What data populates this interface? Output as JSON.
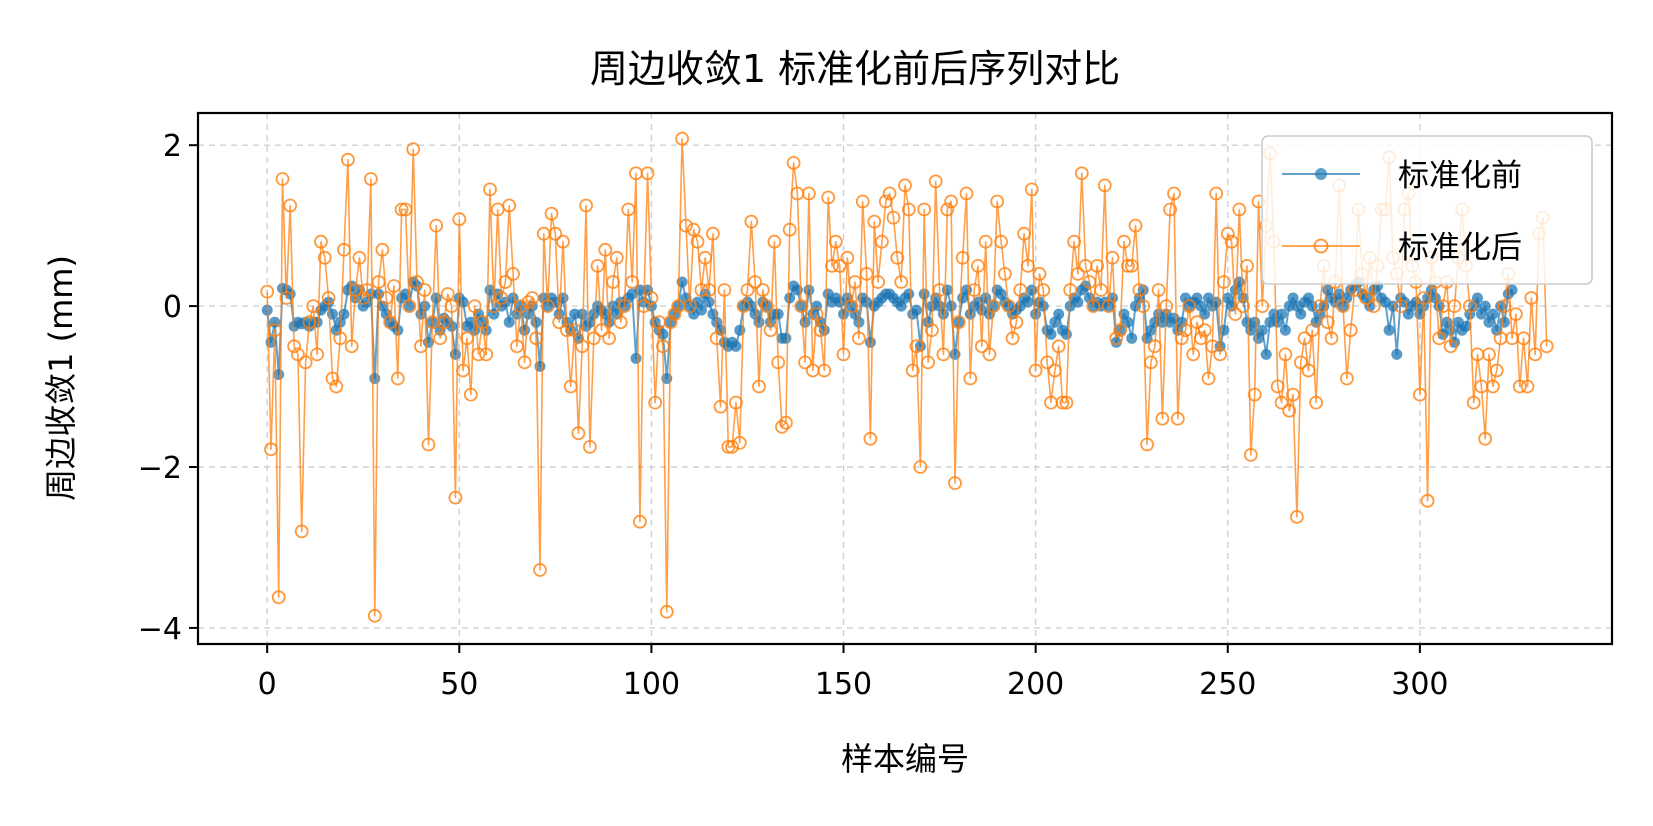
{
  "chart_data": {
    "type": "line",
    "title": "周边收敛1 标准化前后序列对比",
    "xlabel": "样本编号",
    "ylabel": "周边收敛1 (mm)",
    "xlim": [
      -18,
      350
    ],
    "ylim": [
      -4.2,
      2.4
    ],
    "xticks": [
      0,
      50,
      100,
      150,
      200,
      250,
      300
    ],
    "xtick_labels": [
      "0",
      "50",
      "100",
      "150",
      "200",
      "250",
      "300"
    ],
    "yticks": [
      -4,
      -2,
      0,
      2
    ],
    "ytick_labels": [
      "−4",
      "−2",
      "0",
      "2"
    ],
    "grid": true,
    "legend_position": "top-right",
    "colors": {
      "before": "#1f77b4",
      "after": "#ff7f0e"
    },
    "series": [
      {
        "name": "标准化前",
        "marker": "filled-circle",
        "values": [
          -0.05,
          -0.45,
          -0.2,
          -0.85,
          0.22,
          0.2,
          0.15,
          -0.25,
          -0.2,
          -0.22,
          -0.2,
          -0.25,
          -0.2,
          -0.2,
          -0.05,
          0.0,
          0.05,
          -0.1,
          -0.3,
          -0.2,
          -0.1,
          0.2,
          0.25,
          0.1,
          0.2,
          0.0,
          0.05,
          0.15,
          -0.9,
          0.15,
          0.0,
          -0.1,
          -0.2,
          -0.25,
          -0.3,
          0.1,
          0.15,
          0.0,
          0.3,
          0.25,
          -0.1,
          0.0,
          -0.45,
          -0.2,
          0.1,
          -0.3,
          -0.15,
          -0.2,
          -0.25,
          -0.6,
          0.1,
          0.05,
          -0.25,
          -0.2,
          -0.3,
          -0.1,
          -0.2,
          -0.3,
          0.2,
          -0.1,
          0.15,
          0.0,
          0.05,
          -0.2,
          0.1,
          -0.1,
          0.0,
          -0.3,
          -0.1,
          0.0,
          -0.2,
          -0.75,
          0.1,
          0.0,
          0.1,
          0.05,
          -0.1,
          0.1,
          -0.2,
          -0.3,
          -0.1,
          -0.4,
          -0.1,
          -0.25,
          -0.2,
          -0.1,
          0.0,
          -0.05,
          -0.1,
          -0.2,
          0.0,
          -0.1,
          0.05,
          0.0,
          0.1,
          0.15,
          -0.65,
          0.2,
          0.05,
          0.2,
          0.0,
          -0.2,
          -0.3,
          -0.35,
          -0.9,
          -0.2,
          -0.1,
          0.0,
          0.3,
          0.1,
          0.0,
          -0.1,
          0.05,
          -0.05,
          0.15,
          0.05,
          -0.1,
          -0.2,
          -0.3,
          -0.45,
          -0.5,
          -0.45,
          -0.5,
          -0.3,
          0.0,
          0.05,
          0.0,
          -0.1,
          -0.2,
          0.05,
          0.0,
          -0.2,
          -0.1,
          -0.1,
          -0.4,
          -0.4,
          0.1,
          0.25,
          0.2,
          0.0,
          -0.2,
          0.2,
          -0.1,
          0.0,
          -0.2,
          -0.3,
          0.15,
          0.05,
          0.1,
          0.05,
          -0.1,
          0.1,
          0.0,
          -0.1,
          -0.2,
          0.1,
          0.05,
          -0.45,
          0.0,
          0.05,
          0.1,
          0.15,
          0.15,
          0.1,
          0.05,
          0.0,
          0.1,
          0.15,
          -0.1,
          -0.05,
          -0.5,
          0.15,
          -0.2,
          0.0,
          0.1,
          0.0,
          -0.1,
          0.2,
          0.0,
          -0.6,
          -0.2,
          0.1,
          0.2,
          -0.1,
          0.0,
          0.05,
          -0.05,
          0.1,
          -0.1,
          0.0,
          0.2,
          0.15,
          0.05,
          0.0,
          -0.1,
          -0.05,
          0.0,
          0.1,
          0.05,
          0.2,
          -0.1,
          0.05,
          0.0,
          -0.3,
          -0.35,
          -0.2,
          -0.1,
          -0.3,
          -0.35,
          0.0,
          0.1,
          0.05,
          0.2,
          0.25,
          0.1,
          0.0,
          0.05,
          0.0,
          0.05,
          0.0,
          0.1,
          -0.45,
          -0.3,
          -0.1,
          -0.2,
          -0.4,
          0.0,
          0.1,
          0.2,
          -0.4,
          -0.3,
          -0.2,
          -0.1,
          -0.2,
          -0.1,
          -0.2,
          -0.15,
          -0.3,
          -0.2,
          0.1,
          0.0,
          0.05,
          0.1,
          0.0,
          -0.1,
          0.1,
          0.0,
          0.05,
          -0.5,
          -0.3,
          0.1,
          0.0,
          0.2,
          0.3,
          0.1,
          -0.2,
          -0.3,
          -0.2,
          -0.4,
          -0.3,
          -0.6,
          -0.2,
          -0.1,
          -0.2,
          -0.1,
          -0.3,
          0.0,
          0.1,
          0.0,
          -0.1,
          0.05,
          0.1,
          0.0,
          -0.2,
          -0.1,
          0.0,
          0.2,
          0.1,
          0.05,
          0.15,
          0.0,
          0.1,
          0.2,
          0.25,
          0.3,
          0.15,
          0.1,
          0.0,
          0.2,
          0.25,
          0.1,
          0.05,
          -0.3,
          0.0,
          -0.6,
          0.1,
          0.05,
          -0.1,
          0.0,
          0.05,
          -0.1,
          0.0,
          0.1,
          0.2,
          0.1,
          0.0,
          -0.35,
          -0.2,
          -0.3,
          -0.45,
          -0.2,
          -0.3,
          -0.25,
          -0.1,
          0.0,
          0.1,
          -0.1,
          0.0,
          -0.2,
          -0.1,
          -0.3,
          0.0,
          -0.2,
          0.15,
          0.2
        ]
      },
      {
        "name": "标准化后",
        "marker": "hollow-circle",
        "values": [
          0.18,
          -1.78,
          -0.3,
          -3.62,
          1.58,
          0.1,
          1.25,
          -0.5,
          -0.6,
          -2.8,
          -0.7,
          -0.2,
          0.0,
          -0.6,
          0.8,
          0.6,
          0.1,
          -0.9,
          -1.0,
          -0.4,
          0.7,
          1.82,
          -0.5,
          0.2,
          0.6,
          0.1,
          0.2,
          1.58,
          -3.85,
          0.3,
          0.7,
          0.1,
          -0.2,
          0.25,
          -0.9,
          1.2,
          1.2,
          0.0,
          1.95,
          0.3,
          -0.5,
          0.2,
          -1.72,
          -0.2,
          1.0,
          -0.4,
          -0.2,
          0.15,
          0.0,
          -2.38,
          1.08,
          -0.8,
          -0.4,
          -1.1,
          0.0,
          -0.6,
          -0.2,
          -0.6,
          1.45,
          0.0,
          1.2,
          0.1,
          0.3,
          1.25,
          0.4,
          -0.5,
          0.0,
          -0.7,
          0.05,
          0.1,
          -0.4,
          -3.28,
          0.9,
          0.0,
          1.15,
          0.9,
          -0.2,
          0.8,
          -0.3,
          -1.0,
          -0.3,
          -1.58,
          -0.5,
          1.25,
          -1.75,
          -0.4,
          0.5,
          -0.3,
          0.7,
          -0.4,
          0.3,
          0.6,
          -0.2,
          0.0,
          1.2,
          0.3,
          1.65,
          -2.68,
          0.0,
          1.65,
          0.1,
          -1.2,
          -0.2,
          -0.5,
          -3.8,
          -0.2,
          -0.1,
          0.0,
          2.08,
          1.0,
          0.0,
          0.95,
          0.8,
          0.2,
          0.6,
          0.2,
          0.9,
          -0.4,
          -1.25,
          0.2,
          -1.75,
          -1.75,
          -1.2,
          -1.7,
          0.0,
          0.2,
          1.05,
          0.3,
          -1.0,
          0.2,
          0.0,
          -0.3,
          0.8,
          -0.7,
          -1.5,
          -1.45,
          0.95,
          1.78,
          1.4,
          0.0,
          -0.7,
          1.4,
          -0.8,
          -0.1,
          -0.3,
          -0.8,
          1.35,
          0.5,
          0.8,
          0.5,
          -0.6,
          0.6,
          0.0,
          0.3,
          -0.4,
          1.3,
          0.4,
          -1.65,
          1.05,
          0.3,
          0.8,
          1.3,
          1.4,
          1.1,
          0.6,
          0.3,
          1.5,
          1.2,
          -0.8,
          -0.5,
          -2.0,
          1.2,
          -0.7,
          -0.3,
          1.55,
          0.2,
          -0.6,
          1.2,
          1.3,
          -2.2,
          -0.2,
          0.6,
          1.4,
          -0.9,
          0.2,
          0.5,
          -0.5,
          0.8,
          -0.6,
          0.0,
          1.3,
          0.8,
          0.4,
          0.0,
          -0.4,
          -0.2,
          0.2,
          0.9,
          0.5,
          1.45,
          -0.8,
          0.4,
          0.2,
          -0.7,
          -1.2,
          -0.8,
          -0.5,
          -1.2,
          -1.2,
          0.2,
          0.8,
          0.4,
          1.65,
          0.5,
          0.3,
          0.0,
          0.5,
          0.2,
          1.5,
          0.0,
          0.6,
          -0.4,
          -0.3,
          0.8,
          0.5,
          0.5,
          1.0,
          0.2,
          0.0,
          -1.72,
          -0.7,
          -0.5,
          0.2,
          -1.4,
          0.0,
          1.2,
          1.4,
          -1.4,
          -0.4,
          -0.3,
          0.0,
          -0.6,
          -0.2,
          -0.4,
          -0.3,
          -0.9,
          -0.5,
          1.4,
          -0.6,
          0.3,
          0.9,
          0.8,
          -0.1,
          1.2,
          0.0,
          0.5,
          -1.85,
          -1.1,
          1.3,
          0.0,
          1.0,
          1.9,
          0.8,
          -1.0,
          -1.2,
          -0.6,
          -1.3,
          -1.1,
          -2.62,
          -0.7,
          -0.4,
          -0.8,
          -0.3,
          -1.2,
          0.0,
          0.5,
          -0.2,
          -0.4,
          0.3,
          1.5,
          0.0,
          -0.9,
          -0.3,
          0.2,
          1.2,
          0.4,
          0.1,
          0.6,
          0.0,
          0.5,
          1.2,
          1.2,
          1.85,
          0.6,
          0.4,
          0.0,
          1.2,
          1.4,
          0.5,
          0.3,
          -1.1,
          0.1,
          -2.42,
          0.6,
          0.3,
          -0.4,
          0.0,
          0.3,
          -0.5,
          0.0,
          0.6,
          1.2,
          0.5,
          0.0,
          -1.2,
          -0.6,
          -1.0,
          -1.65,
          -0.6,
          -1.0,
          -0.8,
          -0.4,
          0.0,
          0.4,
          -0.4,
          -0.1,
          -1.0,
          -0.4,
          -1.0,
          0.1,
          -0.6,
          0.9,
          1.1,
          -0.5
        ]
      }
    ]
  }
}
